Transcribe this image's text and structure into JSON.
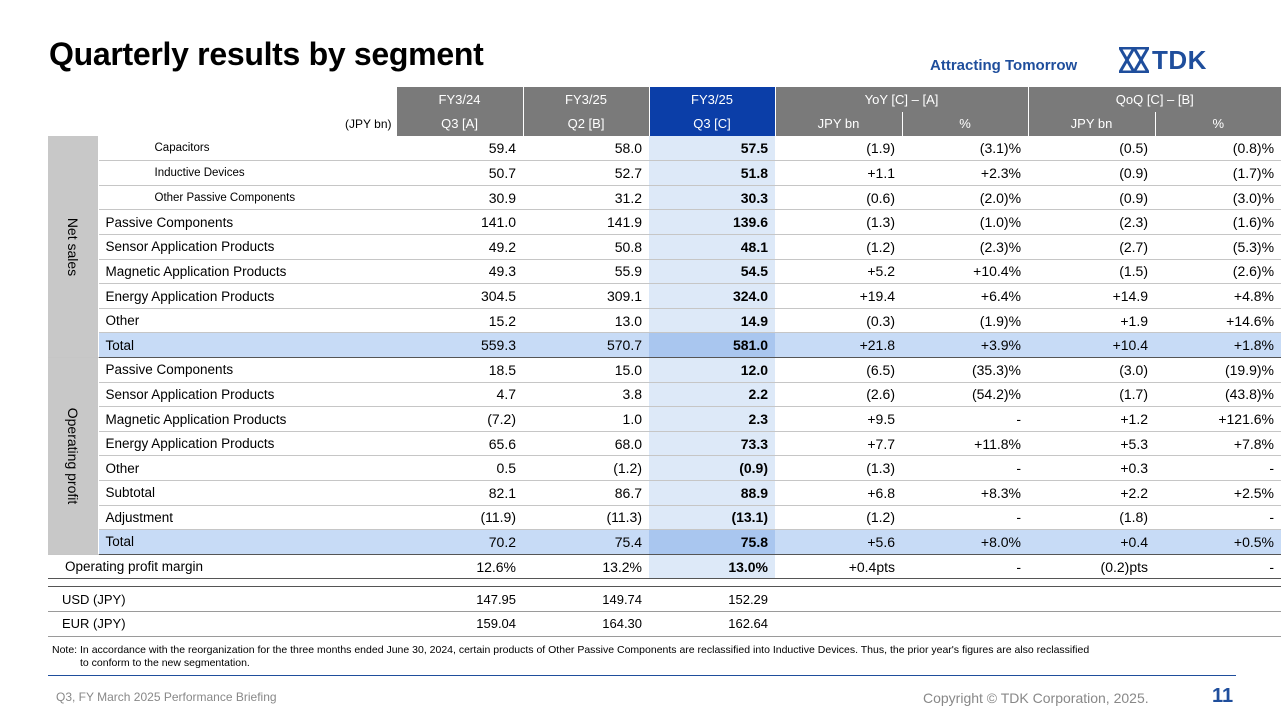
{
  "title": "Quarterly results by segment",
  "tagline": "Attracting Tomorrow",
  "brand": "TDK",
  "header": {
    "periods": [
      "FY3/24",
      "FY3/25",
      "FY3/25"
    ],
    "yoy": "YoY [C] – [A]",
    "qoq": "QoQ [C] – [B]",
    "unit": "(JPY bn)",
    "cols": [
      "Q3 [A]",
      "Q2 [B]",
      "Q3 [C]",
      "JPY bn",
      "%",
      "JPY bn",
      "%"
    ]
  },
  "net_sales": {
    "label": "Net sales",
    "rows": [
      {
        "label": "Capacitors",
        "a": "59.4",
        "b": "58.0",
        "c": "57.5",
        "yoy": "(1.9)",
        "yoy_pct": "(3.1)%",
        "qoq": "(0.5)",
        "qoq_pct": "(0.8)%"
      },
      {
        "label": "Inductive Devices",
        "a": "50.7",
        "b": "52.7",
        "c": "51.8",
        "yoy": "+1.1",
        "yoy_pct": "+2.3%",
        "qoq": "(0.9)",
        "qoq_pct": "(1.7)%"
      },
      {
        "label": "Other Passive Components",
        "a": "30.9",
        "b": "31.2",
        "c": "30.3",
        "yoy": "(0.6)",
        "yoy_pct": "(2.0)%",
        "qoq": "(0.9)",
        "qoq_pct": "(3.0)%"
      },
      {
        "label": "Passive Components",
        "a": "141.0",
        "b": "141.9",
        "c": "139.6",
        "yoy": "(1.3)",
        "yoy_pct": "(1.0)%",
        "qoq": "(2.3)",
        "qoq_pct": "(1.6)%"
      },
      {
        "label": "Sensor Application Products",
        "a": "49.2",
        "b": "50.8",
        "c": "48.1",
        "yoy": "(1.2)",
        "yoy_pct": "(2.3)%",
        "qoq": "(2.7)",
        "qoq_pct": "(5.3)%"
      },
      {
        "label": "Magnetic Application Products",
        "a": "49.3",
        "b": "55.9",
        "c": "54.5",
        "yoy": "+5.2",
        "yoy_pct": "+10.4%",
        "qoq": "(1.5)",
        "qoq_pct": "(2.6)%"
      },
      {
        "label": "Energy Application Products",
        "a": "304.5",
        "b": "309.1",
        "c": "324.0",
        "yoy": "+19.4",
        "yoy_pct": "+6.4%",
        "qoq": "+14.9",
        "qoq_pct": "+4.8%"
      },
      {
        "label": "Other",
        "a": "15.2",
        "b": "13.0",
        "c": "14.9",
        "yoy": "(0.3)",
        "yoy_pct": "(1.9)%",
        "qoq": "+1.9",
        "qoq_pct": "+14.6%"
      },
      {
        "label": "Total",
        "a": "559.3",
        "b": "570.7",
        "c": "581.0",
        "yoy": "+21.8",
        "yoy_pct": "+3.9%",
        "qoq": "+10.4",
        "qoq_pct": "+1.8%"
      }
    ]
  },
  "operating_profit": {
    "label": "Operating profit",
    "rows": [
      {
        "label": "Passive Components",
        "a": "18.5",
        "b": "15.0",
        "c": "12.0",
        "yoy": "(6.5)",
        "yoy_pct": "(35.3)%",
        "qoq": "(3.0)",
        "qoq_pct": "(19.9)%"
      },
      {
        "label": "Sensor Application Products",
        "a": "4.7",
        "b": "3.8",
        "c": "2.2",
        "yoy": "(2.6)",
        "yoy_pct": "(54.2)%",
        "qoq": "(1.7)",
        "qoq_pct": "(43.8)%"
      },
      {
        "label": "Magnetic Application Products",
        "a": "(7.2)",
        "b": "1.0",
        "c": "2.3",
        "yoy": "+9.5",
        "yoy_pct": "-",
        "qoq": "+1.2",
        "qoq_pct": "+121.6%"
      },
      {
        "label": "Energy Application Products",
        "a": "65.6",
        "b": "68.0",
        "c": "73.3",
        "yoy": "+7.7",
        "yoy_pct": "+11.8%",
        "qoq": "+5.3",
        "qoq_pct": "+7.8%"
      },
      {
        "label": "Other",
        "a": "0.5",
        "b": "(1.2)",
        "c": "(0.9)",
        "yoy": "(1.3)",
        "yoy_pct": "-",
        "qoq": "+0.3",
        "qoq_pct": "-"
      },
      {
        "label": "Subtotal",
        "a": "82.1",
        "b": "86.7",
        "c": "88.9",
        "yoy": "+6.8",
        "yoy_pct": "+8.3%",
        "qoq": "+2.2",
        "qoq_pct": "+2.5%"
      },
      {
        "label": "Adjustment",
        "a": "(11.9)",
        "b": "(11.3)",
        "c": "(13.1)",
        "yoy": "(1.2)",
        "yoy_pct": "-",
        "qoq": "(1.8)",
        "qoq_pct": "-"
      },
      {
        "label": "Total",
        "a": "70.2",
        "b": "75.4",
        "c": "75.8",
        "yoy": "+5.6",
        "yoy_pct": "+8.0%",
        "qoq": "+0.4",
        "qoq_pct": "+0.5%"
      }
    ]
  },
  "margin": {
    "label": "Operating profit margin",
    "a": "12.6%",
    "b": "13.2%",
    "c": "13.0%",
    "yoy": "+0.4pts",
    "yoy_pct": "-",
    "qoq": "(0.2)pts",
    "qoq_pct": "-"
  },
  "fx": [
    {
      "label": "USD (JPY)",
      "a": "147.95",
      "b": "149.74",
      "c": "152.29"
    },
    {
      "label": "EUR (JPY)",
      "a": "159.04",
      "b": "164.30",
      "c": "162.64"
    }
  ],
  "note": {
    "line1": "Note: In accordance with the reorganization for the three months ended June 30, 2024, certain products of Other Passive Components are reclassified into Inductive Devices. Thus, the prior year's figures are also reclassified",
    "line2": "to conform to the new segmentation."
  },
  "footer": {
    "left": "Q3, FY March 2025 Performance  Briefing",
    "copyright": "Copyright  © TDK Corporation, 2025.",
    "page": "11"
  },
  "colors": {
    "brand": "#1f4e9c",
    "header_gray": "#7a7a7a",
    "header_highlight": "#0b3ea8",
    "col_highlight": "#dde9f8",
    "total_row": "#c7dbf6"
  }
}
